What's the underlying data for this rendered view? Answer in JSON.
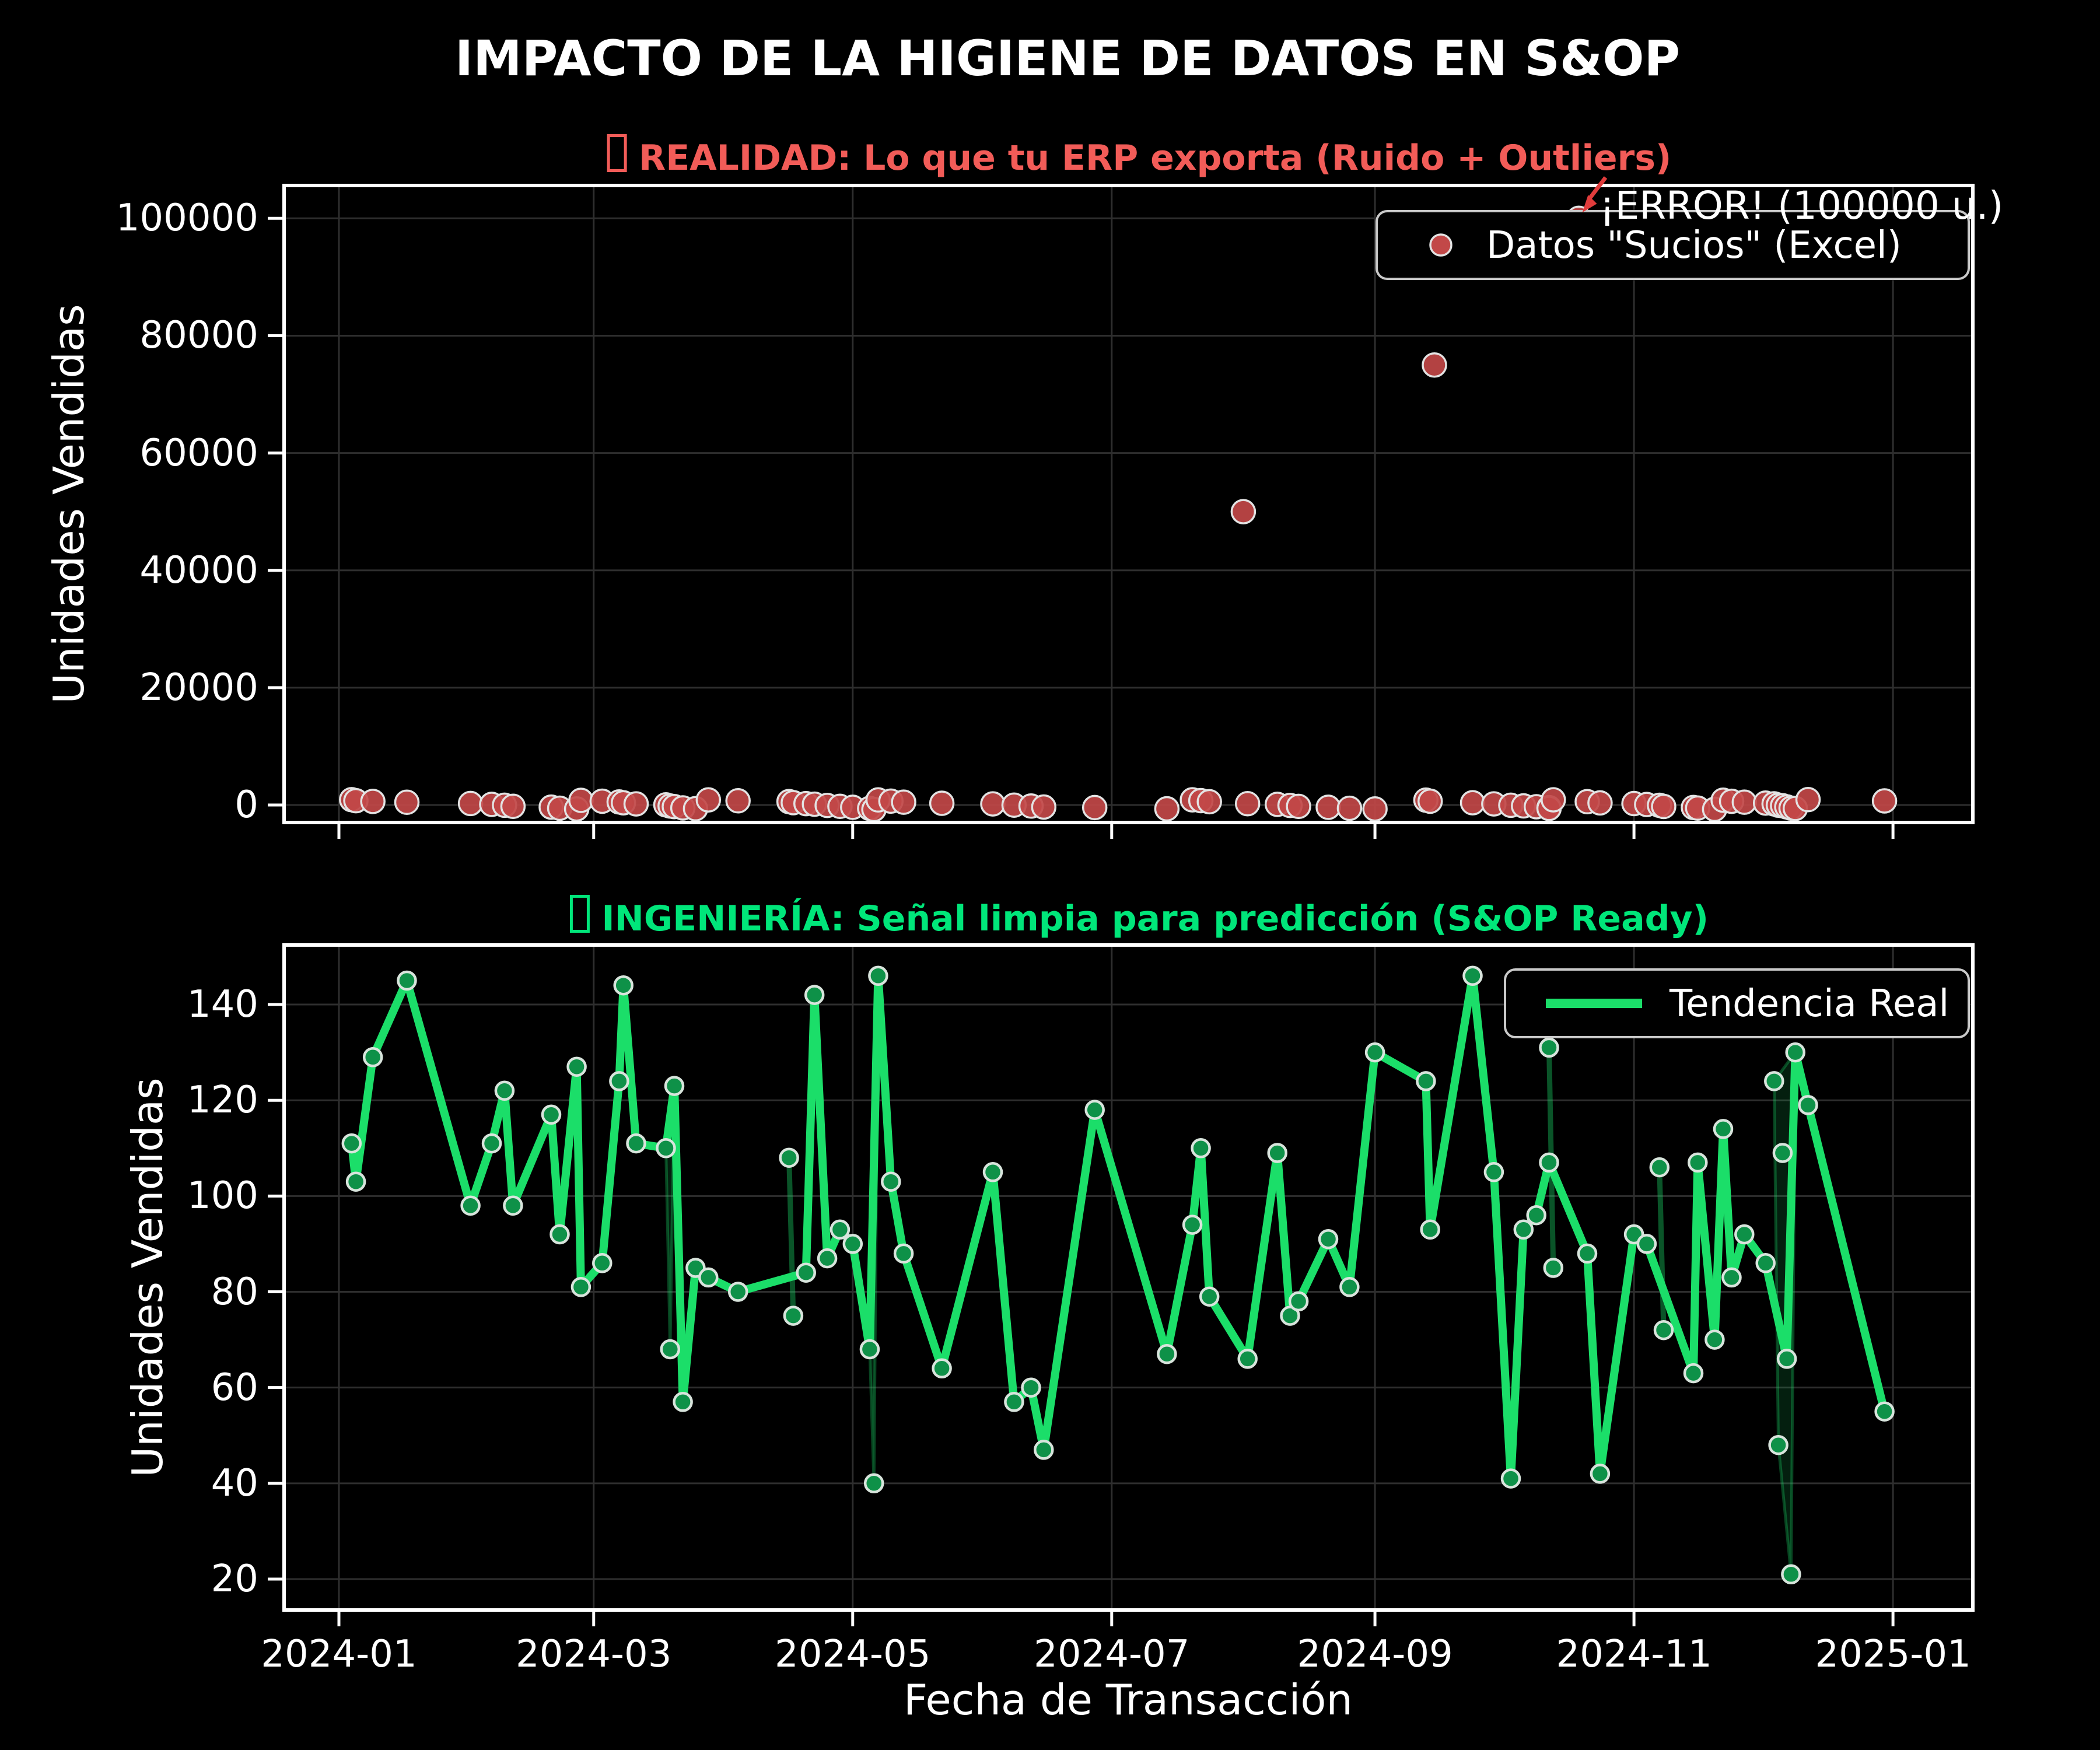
{
  "title": "IMPACTO DE LA HIGIENE DE DATOS EN S&OP",
  "panels": {
    "top": {
      "icon": "missing-emoji-box",
      "title": "REALIDAD: Lo que tu ERP exporta (Ruido + Outliers)",
      "ylabel": "Unidades Vendidas",
      "legend": "Datos \"Sucios\" (Excel)",
      "annotation": "¡ERROR! (100000 u.)"
    },
    "bottom": {
      "icon": "missing-emoji-box",
      "title": "INGENIERÍA: Señal limpia para predicción (S&OP Ready)",
      "ylabel": "Unidades Vendidas",
      "xlabel": "Fecha de Transacción",
      "legend": "Tendencia Real"
    }
  },
  "colors": {
    "background": "#000000",
    "text": "#FFFFFF",
    "grid": "#2E2E2E",
    "spine": "#FFFFFF",
    "red_title": "#F25C58",
    "red_marker": "#C24848",
    "red_marker_edge": "#E3E3E3",
    "green_title": "#00E67A",
    "green_line": "#1BDE69",
    "green_marker": "#0E9148",
    "green_marker_edge": "#D8E4DC",
    "legend_border": "#C9C9C9",
    "arrow": "#E03C3C"
  },
  "chart_data": [
    {
      "type": "scatter",
      "panel": "top",
      "title": "REALIDAD: Lo que tu ERP exporta (Ruido + Outliers)",
      "ylabel": "Unidades Vendidas",
      "ylim": [
        0,
        100000
      ],
      "yticks": [
        0,
        20000,
        40000,
        60000,
        80000,
        100000
      ],
      "xticks": [
        "2024-01",
        "2024-03",
        "2024-05",
        "2024-07",
        "2024-09",
        "2024-11",
        "2025-01"
      ],
      "grid": true,
      "legend_position": "upper right",
      "series": [
        {
          "name": "Datos \"Sucios\" (Excel)",
          "points": [
            [
              "2024-01-04",
              111
            ],
            [
              "2024-01-05",
              103
            ],
            [
              "2024-01-09",
              129
            ],
            [
              "2024-01-17",
              145
            ],
            [
              "2024-02-01",
              98
            ],
            [
              "2024-02-06",
              111
            ],
            [
              "2024-02-09",
              122
            ],
            [
              "2024-02-11",
              98
            ],
            [
              "2024-02-20",
              117
            ],
            [
              "2024-02-22",
              92
            ],
            [
              "2024-02-26",
              127
            ],
            [
              "2024-02-27",
              81
            ],
            [
              "2024-03-03",
              86
            ],
            [
              "2024-03-07",
              124
            ],
            [
              "2024-03-08",
              144
            ],
            [
              "2024-03-11",
              111
            ],
            [
              "2024-03-18",
              110
            ],
            [
              "2024-03-19",
              68
            ],
            [
              "2024-03-20",
              123
            ],
            [
              "2024-03-22",
              57
            ],
            [
              "2024-03-25",
              85
            ],
            [
              "2024-03-28",
              83
            ],
            [
              "2024-04-04",
              80
            ],
            [
              "2024-04-16",
              108
            ],
            [
              "2024-04-17",
              75
            ],
            [
              "2024-04-20",
              84
            ],
            [
              "2024-04-22",
              142
            ],
            [
              "2024-04-25",
              87
            ],
            [
              "2024-04-28",
              93
            ],
            [
              "2024-05-01",
              90
            ],
            [
              "2024-05-05",
              68
            ],
            [
              "2024-05-06",
              40
            ],
            [
              "2024-05-07",
              146
            ],
            [
              "2024-05-10",
              103
            ],
            [
              "2024-05-13",
              88
            ],
            [
              "2024-05-22",
              64
            ],
            [
              "2024-06-03",
              105
            ],
            [
              "2024-06-08",
              57
            ],
            [
              "2024-06-12",
              60
            ],
            [
              "2024-06-15",
              47
            ],
            [
              "2024-06-27",
              118
            ],
            [
              "2024-07-14",
              67
            ],
            [
              "2024-07-20",
              94
            ],
            [
              "2024-07-22",
              110
            ],
            [
              "2024-07-24",
              79
            ],
            [
              "2024-08-01",
              50000
            ],
            [
              "2024-08-02",
              66
            ],
            [
              "2024-08-09",
              109
            ],
            [
              "2024-08-12",
              75
            ],
            [
              "2024-08-14",
              78
            ],
            [
              "2024-08-21",
              91
            ],
            [
              "2024-08-26",
              81
            ],
            [
              "2024-09-01",
              130
            ],
            [
              "2024-09-13",
              124
            ],
            [
              "2024-09-14",
              93
            ],
            [
              "2024-09-15",
              75000
            ],
            [
              "2024-09-24",
              146
            ],
            [
              "2024-09-29",
              105
            ],
            [
              "2024-10-03",
              41
            ],
            [
              "2024-10-06",
              93
            ],
            [
              "2024-10-09",
              96
            ],
            [
              "2024-10-12",
              107
            ],
            [
              "2024-10-12",
              131
            ],
            [
              "2024-10-13",
              85
            ],
            [
              "2024-10-19",
              100000
            ],
            [
              "2024-10-21",
              88
            ],
            [
              "2024-10-24",
              42
            ],
            [
              "2024-11-01",
              92
            ],
            [
              "2024-11-04",
              90
            ],
            [
              "2024-11-07",
              106
            ],
            [
              "2024-11-08",
              72
            ],
            [
              "2024-11-15",
              63
            ],
            [
              "2024-11-16",
              107
            ],
            [
              "2024-11-20",
              70
            ],
            [
              "2024-11-22",
              114
            ],
            [
              "2024-11-24",
              83
            ],
            [
              "2024-11-27",
              92
            ],
            [
              "2024-12-02",
              86
            ],
            [
              "2024-12-04",
              124
            ],
            [
              "2024-12-05",
              48
            ],
            [
              "2024-12-06",
              109
            ],
            [
              "2024-12-07",
              66
            ],
            [
              "2024-12-08",
              21
            ],
            [
              "2024-12-09",
              130
            ],
            [
              "2024-12-12",
              119
            ],
            [
              "2024-12-30",
              55
            ]
          ]
        }
      ],
      "outliers": [
        [
          "2024-08-01",
          50000
        ],
        [
          "2024-09-15",
          75000
        ],
        [
          "2024-10-19",
          100000
        ]
      ],
      "annotation": {
        "text": "¡ERROR! (100000 u.)",
        "fecha": "2024-10-19",
        "valor": 100000
      }
    },
    {
      "type": "line",
      "panel": "bottom",
      "title": "INGENIERÍA: Señal limpia para predicción (S&OP Ready)",
      "xlabel": "Fecha de Transacción",
      "ylabel": "Unidades Vendidas",
      "ylim": [
        13,
        152
      ],
      "yticks": [
        20,
        40,
        60,
        80,
        100,
        120,
        140
      ],
      "xticks": [
        "2024-01",
        "2024-03",
        "2024-05",
        "2024-07",
        "2024-09",
        "2024-11",
        "2025-01"
      ],
      "grid": true,
      "legend_position": "upper right",
      "series": [
        {
          "name": "Tendencia Real",
          "points": [
            [
              "2024-01-04",
              111
            ],
            [
              "2024-01-05",
              103
            ],
            [
              "2024-01-09",
              129
            ],
            [
              "2024-01-17",
              145
            ],
            [
              "2024-02-01",
              98
            ],
            [
              "2024-02-06",
              111
            ],
            [
              "2024-02-09",
              122
            ],
            [
              "2024-02-11",
              98
            ],
            [
              "2024-02-20",
              117
            ],
            [
              "2024-02-22",
              92
            ],
            [
              "2024-02-26",
              127
            ],
            [
              "2024-02-27",
              81
            ],
            [
              "2024-03-03",
              86
            ],
            [
              "2024-03-07",
              124
            ],
            [
              "2024-03-08",
              144
            ],
            [
              "2024-03-11",
              111
            ],
            [
              "2024-03-18",
              110
            ],
            [
              "2024-03-20",
              123
            ],
            [
              "2024-03-22",
              57
            ],
            [
              "2024-03-25",
              85
            ],
            [
              "2024-03-28",
              83
            ],
            [
              "2024-04-04",
              80
            ],
            [
              "2024-04-20",
              84
            ],
            [
              "2024-04-22",
              142
            ],
            [
              "2024-04-25",
              87
            ],
            [
              "2024-04-28",
              93
            ],
            [
              "2024-05-01",
              90
            ],
            [
              "2024-05-05",
              68
            ],
            [
              "2024-05-07",
              146
            ],
            [
              "2024-05-10",
              103
            ],
            [
              "2024-05-13",
              88
            ],
            [
              "2024-05-22",
              64
            ],
            [
              "2024-06-03",
              105
            ],
            [
              "2024-06-08",
              57
            ],
            [
              "2024-06-12",
              60
            ],
            [
              "2024-06-15",
              47
            ],
            [
              "2024-06-27",
              118
            ],
            [
              "2024-07-14",
              67
            ],
            [
              "2024-07-20",
              94
            ],
            [
              "2024-07-22",
              110
            ],
            [
              "2024-07-24",
              79
            ],
            [
              "2024-08-02",
              66
            ],
            [
              "2024-08-09",
              109
            ],
            [
              "2024-08-12",
              75
            ],
            [
              "2024-08-14",
              78
            ],
            [
              "2024-08-21",
              91
            ],
            [
              "2024-08-26",
              81
            ],
            [
              "2024-09-01",
              130
            ],
            [
              "2024-09-13",
              124
            ],
            [
              "2024-09-14",
              93
            ],
            [
              "2024-09-24",
              146
            ],
            [
              "2024-09-29",
              105
            ],
            [
              "2024-10-03",
              41
            ],
            [
              "2024-10-06",
              93
            ],
            [
              "2024-10-09",
              96
            ],
            [
              "2024-10-12",
              107
            ],
            [
              "2024-10-21",
              88
            ],
            [
              "2024-10-24",
              42
            ],
            [
              "2024-11-01",
              92
            ],
            [
              "2024-11-04",
              90
            ],
            [
              "2024-11-15",
              63
            ],
            [
              "2024-11-16",
              107
            ],
            [
              "2024-11-20",
              70
            ],
            [
              "2024-11-22",
              114
            ],
            [
              "2024-11-24",
              83
            ],
            [
              "2024-11-27",
              92
            ],
            [
              "2024-12-02",
              86
            ],
            [
              "2024-12-07",
              66
            ],
            [
              "2024-12-09",
              130
            ],
            [
              "2024-12-12",
              119
            ],
            [
              "2024-12-30",
              55
            ]
          ]
        },
        {
          "name": "excursiones-raw-recortadas",
          "groups": [
            {
              "modo": "relleno",
              "puntos": [
                [
                  "2024-03-19",
                  68
                ]
              ],
              "poligono": [
                [
                  "2024-03-18",
                  110
                ],
                [
                  "2024-03-19",
                  68
                ],
                [
                  "2024-03-20",
                  123
                ]
              ]
            },
            {
              "modo": "linea",
              "puntos": [
                [
                  "2024-04-16",
                  108
                ],
                [
                  "2024-04-17",
                  75
                ]
              ]
            },
            {
              "modo": "relleno",
              "puntos": [
                [
                  "2024-05-06",
                  40
                ]
              ],
              "poligono": [
                [
                  "2024-05-05",
                  68
                ],
                [
                  "2024-05-06",
                  40
                ],
                [
                  "2024-05-07",
                  146
                ]
              ]
            },
            {
              "modo": "linea",
              "puntos": [
                [
                  "2024-10-12",
                  131
                ],
                [
                  "2024-10-13",
                  85
                ]
              ]
            },
            {
              "modo": "linea",
              "puntos": [
                [
                  "2024-11-07",
                  106
                ],
                [
                  "2024-11-08",
                  72
                ]
              ]
            },
            {
              "modo": "relleno",
              "puntos": [
                [
                  "2024-12-04",
                  124
                ],
                [
                  "2024-12-05",
                  48
                ],
                [
                  "2024-12-06",
                  109
                ],
                [
                  "2024-12-08",
                  21
                ]
              ],
              "poligono": [
                [
                  "2024-12-04",
                  124
                ],
                [
                  "2024-12-05",
                  48
                ],
                [
                  "2024-12-08",
                  21
                ],
                [
                  "2024-12-09",
                  130
                ]
              ]
            }
          ]
        }
      ]
    }
  ]
}
